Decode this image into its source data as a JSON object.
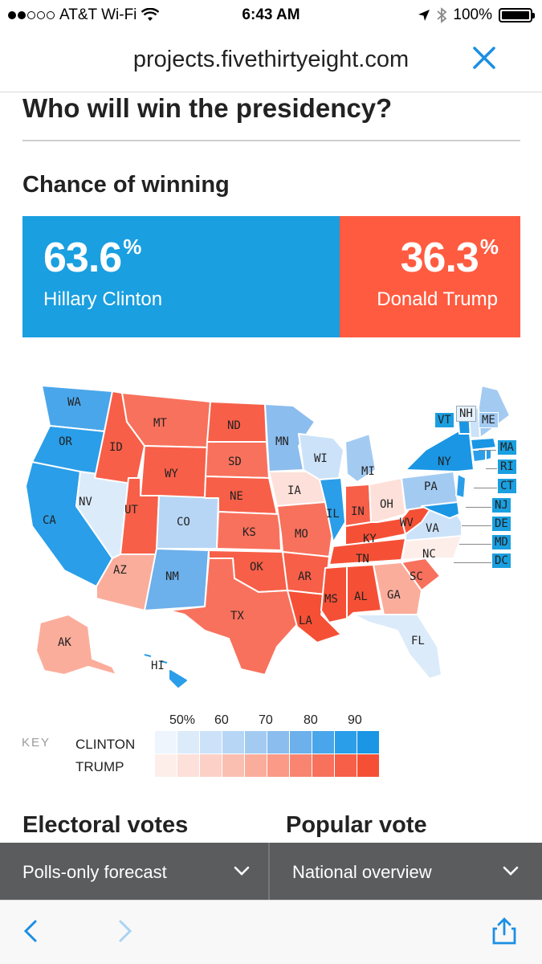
{
  "status": {
    "carrier": "AT&T Wi-Fi",
    "time": "6:43 AM",
    "battery": "100%",
    "signal_bars_filled": 2,
    "signal_bars_total": 5
  },
  "browser": {
    "url": "projects.fivethirtyeight.com",
    "close_icon": "close-icon",
    "back_icon": "chevron-left-icon",
    "forward_icon": "chevron-right-icon",
    "share_icon": "share-icon"
  },
  "page": {
    "title": "Who will win the presidency?",
    "chance_heading": "Chance of winning",
    "electoral_heading": "Electoral votes",
    "popular_heading": "Popular vote"
  },
  "chances": {
    "clinton": {
      "pct": "63.6",
      "pct_sign": "%",
      "name": "Hillary Clinton",
      "value": 63.6,
      "color": "#1a9fe0"
    },
    "trump": {
      "pct": "36.3",
      "pct_sign": "%",
      "name": "Donald Trump",
      "value": 36.3,
      "color": "#ff5b40"
    }
  },
  "map": {
    "labels": {
      "WA": "WA",
      "OR": "OR",
      "CA": "CA",
      "NV": "NV",
      "ID": "ID",
      "MT": "MT",
      "WY": "WY",
      "UT": "UT",
      "AZ": "AZ",
      "CO": "CO",
      "NM": "NM",
      "ND": "ND",
      "SD": "SD",
      "NE": "NE",
      "KS": "KS",
      "OK": "OK",
      "TX": "TX",
      "MN": "MN",
      "IA": "IA",
      "MO": "MO",
      "AR": "AR",
      "LA": "LA",
      "WI": "WI",
      "IL": "IL",
      "MI": "MI",
      "IN": "IN",
      "OH": "OH",
      "KY": "KY",
      "TN": "TN",
      "MS": "MS",
      "AL": "AL",
      "GA": "GA",
      "FL": "FL",
      "SC": "SC",
      "NC": "NC",
      "VA": "VA",
      "WV": "WV",
      "PA": "PA",
      "NY": "NY",
      "VT": "VT",
      "NH": "NH",
      "ME": "ME",
      "MA": "MA",
      "RI": "RI",
      "CT": "CT",
      "NJ": "NJ",
      "DE": "DE",
      "MD": "MD",
      "DC": "DC",
      "AK": "AK",
      "HI": "HI"
    }
  },
  "key": {
    "label": "KEY",
    "clinton": "CLINTON",
    "trump": "TRUMP",
    "ticks": [
      "50%",
      "60",
      "70",
      "80",
      "90"
    ],
    "clinton_colors": [
      "#eef5fd",
      "#dcebfa",
      "#cce2f8",
      "#b7d6f5",
      "#a3cbf2",
      "#8bbdee",
      "#6cb0ec",
      "#4aa6ea",
      "#2a9ee8",
      "#1a96e4"
    ],
    "trump_colors": [
      "#fdeeea",
      "#fde0d9",
      "#fcd0c6",
      "#fbbfb1",
      "#fbad9c",
      "#fa9a87",
      "#f98571",
      "#f8715c",
      "#f75f48",
      "#f55036"
    ]
  },
  "dropdowns": {
    "left": "Polls-only forecast",
    "right": "National overview",
    "chevron_icon": "chevron-down-icon"
  }
}
